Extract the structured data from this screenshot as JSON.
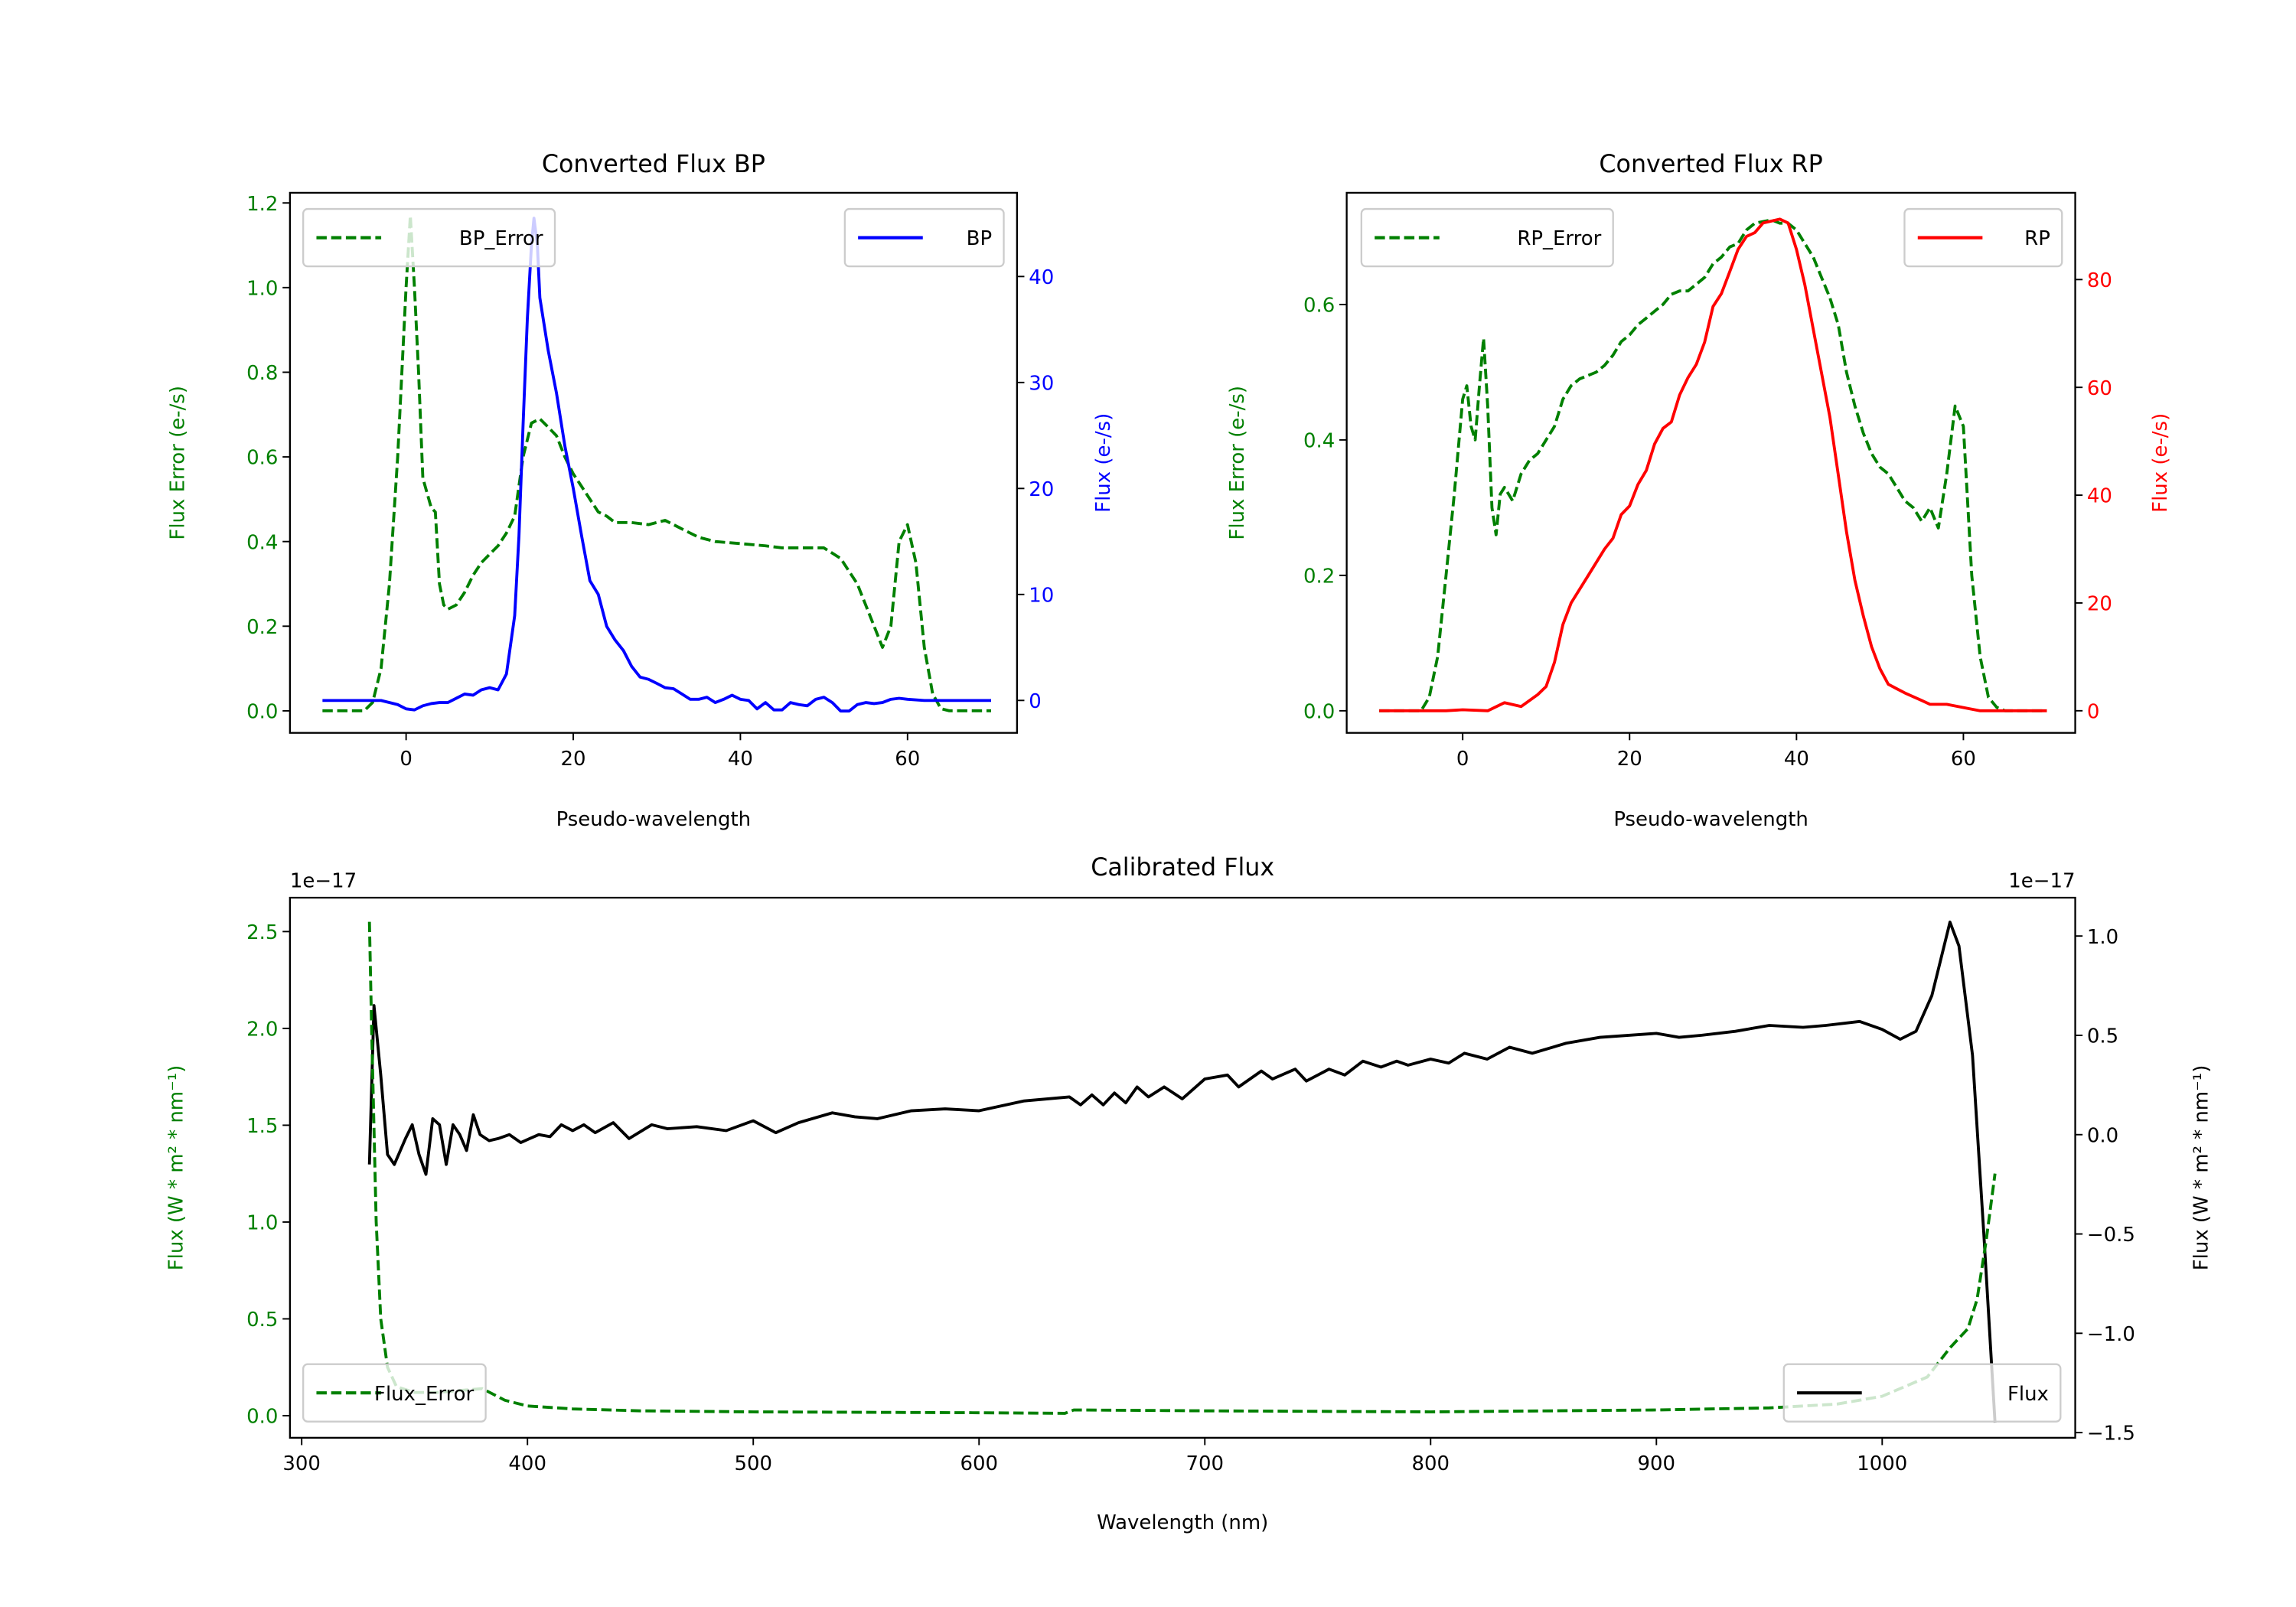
{
  "figure": {
    "left_offset_text": "1e−17",
    "right_offset_text": "1e−17"
  },
  "chart_data": [
    {
      "type": "line",
      "title": "Converted Flux BP",
      "xlabel": "Pseudo-wavelength",
      "ylabel_left": "Flux Error (e-/s)",
      "ylabel_right": "Flux (e-/s)",
      "ylabel_left_color": "#008000",
      "ylabel_right_color": "#0000ff",
      "xlim": [
        -13.9,
        73.1
      ],
      "ylim_left": [
        -0.052,
        1.224
      ],
      "ylim_right": [
        -3.06,
        47.9
      ],
      "x_ticks": [
        0,
        20,
        40,
        60
      ],
      "x_tick_labels": [
        "0",
        "20",
        "40",
        "60"
      ],
      "yl_ticks": [
        0,
        0.2,
        0.4,
        0.6,
        0.8,
        1.0,
        1.2
      ],
      "yl_tick_labels": [
        "0.0",
        "0.2",
        "0.4",
        "0.6",
        "0.8",
        "1.0",
        "1.2"
      ],
      "yr_ticks": [
        0,
        10,
        20,
        30,
        40
      ],
      "yr_tick_labels": [
        "0",
        "10",
        "20",
        "30",
        "40"
      ],
      "legend_left": "top-left",
      "legend_right": "top-right",
      "series": [
        {
          "name": "BP_Error",
          "axis": "left",
          "color": "#008000",
          "style": "dashed",
          "x": [
            -10,
            -5,
            -4,
            -3,
            -2,
            -1,
            0,
            0.5,
            1,
            1.5,
            2,
            3,
            3.5,
            4,
            4.5,
            5,
            6,
            7,
            8,
            9,
            10,
            11,
            12,
            13,
            14,
            15,
            16,
            17,
            18,
            19,
            20,
            21,
            22,
            23,
            24,
            25,
            27,
            29,
            31,
            33,
            35,
            37,
            40,
            43,
            45,
            50,
            52,
            54,
            56,
            57,
            58,
            59,
            60,
            61,
            62,
            63,
            64,
            65,
            70
          ],
          "y": [
            0,
            0,
            0.02,
            0.1,
            0.3,
            0.6,
            1.0,
            1.17,
            1.0,
            0.8,
            0.55,
            0.48,
            0.47,
            0.3,
            0.25,
            0.24,
            0.25,
            0.28,
            0.32,
            0.35,
            0.37,
            0.39,
            0.42,
            0.46,
            0.6,
            0.68,
            0.69,
            0.67,
            0.65,
            0.6,
            0.56,
            0.53,
            0.5,
            0.47,
            0.46,
            0.445,
            0.445,
            0.44,
            0.45,
            0.43,
            0.41,
            0.4,
            0.395,
            0.39,
            0.385,
            0.385,
            0.36,
            0.3,
            0.2,
            0.15,
            0.2,
            0.4,
            0.44,
            0.35,
            0.15,
            0.04,
            0.005,
            0,
            0
          ]
        },
        {
          "name": "BP",
          "axis": "right",
          "color": "#0000ff",
          "style": "solid",
          "x": [
            -10,
            -3,
            -1,
            0,
            1,
            2,
            3,
            4,
            5,
            6,
            7,
            8,
            9,
            10,
            11,
            12,
            13,
            13.5,
            14,
            14.5,
            15,
            15.3,
            15.7,
            16,
            17,
            18,
            19,
            20,
            21,
            22,
            23,
            24,
            25,
            26,
            27,
            28,
            29,
            30,
            31,
            32,
            33,
            34,
            35,
            36,
            37,
            38,
            39,
            40,
            41,
            42,
            43,
            44,
            45,
            46,
            47,
            48,
            49,
            50,
            51,
            52,
            53,
            54,
            55,
            56,
            57,
            58,
            59,
            60,
            62,
            70
          ],
          "y": [
            0,
            0,
            -0.4,
            -0.8,
            -0.9,
            -0.5,
            -0.3,
            -0.2,
            -0.2,
            0.2,
            0.6,
            0.5,
            1.0,
            1.2,
            1.0,
            2.5,
            8,
            15.5,
            26,
            36,
            43,
            45.5,
            43,
            38,
            33,
            29,
            24,
            20,
            15.5,
            11.3,
            10,
            7,
            5.7,
            4.7,
            3.2,
            2.2,
            2,
            1.6,
            1.2,
            1.1,
            0.6,
            0.1,
            0.1,
            0.3,
            -0.2,
            0.1,
            0.5,
            0.1,
            0,
            -0.8,
            -0.2,
            -0.9,
            -0.9,
            -0.2,
            -0.4,
            -0.5,
            0.1,
            0.3,
            -0.2,
            -1.0,
            -1.0,
            -0.4,
            -0.2,
            -0.3,
            -0.2,
            0.1,
            0.2,
            0.1,
            0,
            0
          ]
        }
      ]
    },
    {
      "type": "line",
      "title": "Converted Flux RP",
      "xlabel": "Pseudo-wavelength",
      "ylabel_left": "Flux Error (e-/s)",
      "ylabel_right": "Flux (e-/s)",
      "ylabel_left_color": "#008000",
      "ylabel_right_color": "#ff0000",
      "xlim": [
        -13.9,
        73.4
      ],
      "ylim_left": [
        -0.0326,
        0.765
      ],
      "ylim_right": [
        -4.1,
        96.1
      ],
      "x_ticks": [
        0,
        20,
        40,
        60
      ],
      "x_tick_labels": [
        "0",
        "20",
        "40",
        "60"
      ],
      "yl_ticks": [
        0,
        0.2,
        0.4,
        0.6
      ],
      "yl_tick_labels": [
        "0.0",
        "0.2",
        "0.4",
        "0.6"
      ],
      "yr_ticks": [
        0,
        20,
        40,
        60,
        80
      ],
      "yr_tick_labels": [
        "0",
        "20",
        "40",
        "60",
        "80"
      ],
      "legend_left": "top-left",
      "legend_right": "top-right",
      "series": [
        {
          "name": "RP_Error",
          "axis": "left",
          "color": "#008000",
          "style": "dashed",
          "x": [
            -10,
            -5,
            -4,
            -3,
            -2,
            -1,
            0,
            0.5,
            1,
            1.5,
            2,
            2.5,
            3,
            3.5,
            4,
            4.5,
            5,
            6,
            7,
            8,
            9,
            10,
            11,
            12,
            13,
            14,
            16,
            17,
            18,
            19,
            20,
            21,
            22,
            23,
            24,
            25,
            26,
            27,
            28,
            29,
            30,
            31,
            32,
            33,
            34,
            35,
            37,
            38,
            39,
            40,
            41,
            42,
            43,
            44,
            45,
            46,
            47,
            48,
            49,
            50,
            51,
            52,
            53,
            54,
            55,
            56,
            57,
            58,
            59,
            60,
            61,
            62,
            63,
            64,
            65,
            70
          ],
          "y": [
            0,
            0,
            0.02,
            0.08,
            0.2,
            0.32,
            0.46,
            0.48,
            0.42,
            0.4,
            0.48,
            0.55,
            0.45,
            0.3,
            0.26,
            0.32,
            0.33,
            0.31,
            0.35,
            0.37,
            0.38,
            0.4,
            0.42,
            0.46,
            0.48,
            0.49,
            0.5,
            0.51,
            0.525,
            0.545,
            0.555,
            0.57,
            0.58,
            0.59,
            0.6,
            0.615,
            0.62,
            0.62,
            0.63,
            0.64,
            0.66,
            0.67,
            0.685,
            0.69,
            0.71,
            0.72,
            0.725,
            0.72,
            0.72,
            0.71,
            0.69,
            0.67,
            0.64,
            0.61,
            0.57,
            0.5,
            0.45,
            0.41,
            0.38,
            0.36,
            0.35,
            0.33,
            0.31,
            0.3,
            0.28,
            0.3,
            0.27,
            0.35,
            0.45,
            0.42,
            0.2,
            0.08,
            0.02,
            0.005,
            0,
            0
          ]
        },
        {
          "name": "RP",
          "axis": "right",
          "color": "#ff0000",
          "style": "solid",
          "x": [
            -10,
            -2,
            0,
            3,
            5,
            7,
            9,
            10,
            11,
            12,
            13,
            15,
            17,
            18,
            19,
            20,
            21,
            22,
            23,
            24,
            25,
            26,
            27,
            28,
            29,
            30,
            31,
            32,
            33,
            34,
            35,
            36,
            38,
            39,
            40,
            41,
            42,
            43,
            44,
            45,
            46,
            47,
            48,
            49,
            50,
            51,
            52,
            53,
            55,
            56,
            58,
            60,
            62,
            70
          ],
          "y": [
            0,
            0,
            0.2,
            0,
            1.5,
            0.8,
            3,
            4.5,
            9,
            16,
            20,
            25,
            30,
            32,
            36.4,
            38,
            42,
            44.6,
            49.5,
            52.4,
            53.6,
            58.6,
            61.8,
            64.3,
            68.4,
            75,
            77.4,
            81.5,
            85.6,
            88,
            88.7,
            90.5,
            91.2,
            90.5,
            85.6,
            79,
            70.8,
            62.7,
            54.5,
            43.8,
            33.2,
            24.2,
            17.6,
            11.9,
            7.8,
            4.9,
            4.1,
            3.3,
            1.9,
            1.2,
            1.2,
            0.6,
            0,
            0
          ]
        }
      ]
    },
    {
      "type": "line",
      "title": "Calibrated Flux",
      "xlabel": "Wavelength (nm)",
      "ylabel_left": "Flux (W * m² * nm⁻¹)",
      "ylabel_right": "Flux (W * m² * nm⁻¹)",
      "ylabel_left_color": "#008000",
      "ylabel_right_color": "#000000",
      "y_scale": "1e-17",
      "xlim": [
        294.8,
        1085.5
      ],
      "ylim_left": [
        -0.114,
        2.675
      ],
      "ylim_right": [
        -1.526,
        1.193
      ],
      "x_ticks": [
        300,
        400,
        500,
        600,
        700,
        800,
        900,
        1000
      ],
      "x_tick_labels": [
        "300",
        "400",
        "500",
        "600",
        "700",
        "800",
        "900",
        "1000"
      ],
      "yl_ticks": [
        0,
        0.5,
        1.0,
        1.5,
        2.0,
        2.5
      ],
      "yl_tick_labels": [
        "0.0",
        "0.5",
        "1.0",
        "1.5",
        "2.0",
        "2.5"
      ],
      "yr_ticks": [
        -1.5,
        -1.0,
        -0.5,
        0.0,
        0.5,
        1.0
      ],
      "yr_tick_labels": [
        "−1.5",
        "−1.0",
        "−0.5",
        "0.0",
        "0.5",
        "1.0"
      ],
      "legend_left": "lower-left",
      "legend_right": "lower-right",
      "series": [
        {
          "name": "Flux",
          "axis": "right",
          "color": "#000000",
          "style": "solid",
          "x": [
            330,
            332,
            335,
            338,
            341,
            346,
            349,
            352,
            355,
            358,
            361,
            364,
            367,
            370,
            373,
            376,
            379,
            383,
            387,
            392,
            397,
            401,
            405,
            410,
            415,
            420,
            425,
            430,
            438,
            445,
            455,
            462,
            475,
            488,
            500,
            510,
            520,
            535,
            545,
            555,
            570,
            585,
            600,
            620,
            640,
            645,
            650,
            655,
            660,
            665,
            670,
            675,
            682,
            690,
            700,
            710,
            715,
            725,
            730,
            740,
            745,
            755,
            762,
            770,
            778,
            785,
            790,
            800,
            808,
            815,
            825,
            835,
            845,
            860,
            875,
            900,
            910,
            920,
            935,
            950,
            965,
            975,
            990,
            1000,
            1008,
            1015,
            1022,
            1030,
            1034,
            1040,
            1045,
            1050
          ],
          "y": [
            -0.15,
            0.65,
            0.3,
            -0.1,
            -0.15,
            -0.02,
            0.05,
            -0.1,
            -0.2,
            0.08,
            0.05,
            -0.15,
            0.05,
            0.0,
            -0.08,
            0.1,
            0.0,
            -0.03,
            -0.02,
            0.0,
            -0.04,
            -0.02,
            0.0,
            -0.01,
            0.05,
            0.02,
            0.05,
            0.01,
            0.06,
            -0.02,
            0.05,
            0.03,
            0.04,
            0.02,
            0.07,
            0.01,
            0.06,
            0.11,
            0.09,
            0.08,
            0.12,
            0.13,
            0.12,
            0.17,
            0.19,
            0.15,
            0.2,
            0.15,
            0.21,
            0.16,
            0.24,
            0.19,
            0.24,
            0.18,
            0.28,
            0.3,
            0.24,
            0.32,
            0.28,
            0.33,
            0.27,
            0.33,
            0.3,
            0.37,
            0.34,
            0.37,
            0.35,
            0.38,
            0.36,
            0.41,
            0.38,
            0.44,
            0.41,
            0.46,
            0.49,
            0.51,
            0.49,
            0.5,
            0.52,
            0.55,
            0.54,
            0.55,
            0.57,
            0.53,
            0.48,
            0.52,
            0.7,
            1.07,
            0.95,
            0.4,
            -0.5,
            -1.45
          ]
        },
        {
          "name": "Flux_Error",
          "axis": "left",
          "color": "#008000",
          "style": "dashed",
          "x": [
            330,
            331,
            333,
            335,
            338,
            342,
            350,
            360,
            370,
            380,
            390,
            400,
            420,
            450,
            500,
            600,
            638,
            642,
            700,
            800,
            900,
            950,
            980,
            1000,
            1020,
            1030,
            1038,
            1042,
            1046,
            1050
          ],
          "y": [
            2.55,
            2.0,
            1.0,
            0.5,
            0.25,
            0.15,
            0.12,
            0.12,
            0.13,
            0.14,
            0.08,
            0.05,
            0.035,
            0.025,
            0.02,
            0.015,
            0.012,
            0.03,
            0.025,
            0.02,
            0.03,
            0.04,
            0.06,
            0.1,
            0.2,
            0.35,
            0.45,
            0.6,
            0.9,
            1.25
          ]
        }
      ]
    }
  ]
}
